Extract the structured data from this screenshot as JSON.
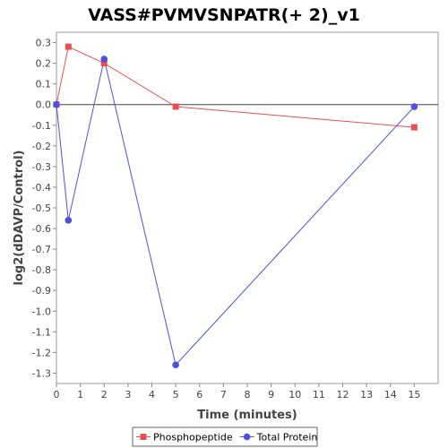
{
  "chart_data": {
    "type": "line",
    "title": "VASS#PVMVSNPATR(+ 2)_v1",
    "xlabel": "Time (minutes)",
    "ylabel": "log2(dDAVP/Control)",
    "xlim": [
      0,
      16
    ],
    "ylim": [
      -1.35,
      0.35
    ],
    "xticks": [
      0,
      1,
      2,
      3,
      4,
      5,
      6,
      7,
      8,
      9,
      10,
      11,
      12,
      13,
      14,
      15
    ],
    "yticks": [
      0.3,
      0.2,
      0.1,
      0.0,
      -0.1,
      -0.2,
      -0.3,
      -0.4,
      -0.5,
      -0.6,
      -0.7,
      -0.8,
      -0.9,
      -1.0,
      -1.1,
      -1.2,
      -1.3
    ],
    "ytick_labels": [
      "0.3",
      "0.2",
      "0.1",
      "0.0",
      "-0.1",
      "-0.2",
      "-0.3",
      "-0.4",
      "-0.5",
      "-0.6",
      "-0.7",
      "-0.8",
      "-0.9",
      "-1.0",
      "-1.1",
      "-1.2",
      "-1.3"
    ],
    "grid": false,
    "legend_position": "bottom",
    "series": [
      {
        "name": "Phosphopeptide",
        "color": "#e85050",
        "marker": "square",
        "x": [
          0,
          0.5,
          2,
          5,
          15
        ],
        "y": [
          0.0,
          0.28,
          0.2,
          -0.01,
          -0.11
        ]
      },
      {
        "name": "Total Protein",
        "color": "#5050e0",
        "marker": "circle",
        "x": [
          0,
          0.5,
          2,
          5,
          15
        ],
        "y": [
          0.0,
          -0.56,
          0.22,
          -1.26,
          -0.01
        ]
      }
    ]
  }
}
